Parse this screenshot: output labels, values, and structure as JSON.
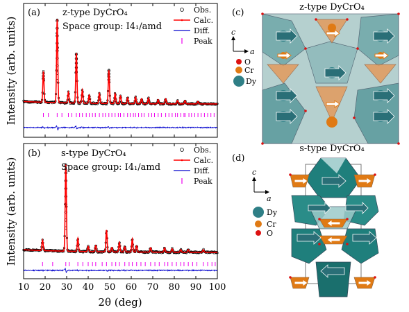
{
  "colors": {
    "obs": "#000000",
    "calc": "#ff0000",
    "diff": "#0000cc",
    "peak": "#ee00ee",
    "dy": "#3a8f95",
    "cr": "#e07a14",
    "o": "#dd1111",
    "arrow": "#2a6f77"
  },
  "chart_data": [
    {
      "type": "line",
      "panel_label": "(a)",
      "title": "z-type DyCrO₄",
      "subtitle": "Space group: I4₁/amd",
      "xlabel": "2θ (deg)",
      "ylabel": "Intensity (arb. units)",
      "xlim": [
        10,
        100
      ],
      "xticks": [],
      "legend": [
        "Obs.",
        "Calc.",
        "Diff.",
        "Peak"
      ],
      "legend_position": "top-right",
      "peaks": [
        {
          "x": 19.2,
          "y": 0.37
        },
        {
          "x": 25.6,
          "y": 1.0
        },
        {
          "x": 30.8,
          "y": 0.13
        },
        {
          "x": 34.5,
          "y": 0.6
        },
        {
          "x": 37.3,
          "y": 0.16
        },
        {
          "x": 40.5,
          "y": 0.1
        },
        {
          "x": 45.2,
          "y": 0.12
        },
        {
          "x": 49.6,
          "y": 0.4
        },
        {
          "x": 52.5,
          "y": 0.12
        },
        {
          "x": 55.0,
          "y": 0.09
        },
        {
          "x": 58.3,
          "y": 0.07
        },
        {
          "x": 62.0,
          "y": 0.08
        },
        {
          "x": 64.8,
          "y": 0.06
        },
        {
          "x": 68.0,
          "y": 0.07
        },
        {
          "x": 72.5,
          "y": 0.05
        },
        {
          "x": 76.0,
          "y": 0.06
        },
        {
          "x": 81.5,
          "y": 0.04
        },
        {
          "x": 85.0,
          "y": 0.04
        },
        {
          "x": 91.0,
          "y": 0.03
        }
      ],
      "bragg_positions": [
        19.2,
        21.5,
        25.6,
        27.8,
        30.8,
        32.4,
        34.5,
        36.0,
        37.3,
        39.1,
        40.5,
        42.0,
        43.3,
        45.2,
        46.8,
        48.0,
        49.6,
        51.0,
        52.5,
        54.0,
        55.0,
        56.6,
        58.3,
        59.5,
        61.0,
        62.0,
        63.4,
        64.8,
        66.0,
        68.0,
        69.5,
        70.8,
        72.5,
        74.0,
        76.0,
        77.5,
        79.0,
        80.5,
        81.5,
        83.0,
        84.5,
        85.0,
        86.8,
        88.0,
        89.5,
        91.0,
        92.5,
        94.0,
        95.5,
        97.0,
        98.5
      ]
    },
    {
      "type": "line",
      "panel_label": "(b)",
      "title": "s-type DyCrO₄",
      "subtitle": "Space group: I4₁/amd",
      "xlabel": "2θ (deg)",
      "ylabel": "Intensity (arb. units)",
      "xlim": [
        10,
        100
      ],
      "xticks": [
        10,
        20,
        30,
        40,
        50,
        60,
        70,
        80,
        90,
        100
      ],
      "legend": [
        "Obs.",
        "Calc.",
        "Diff.",
        "Peak"
      ],
      "legend_position": "top-right",
      "peaks": [
        {
          "x": 18.8,
          "y": 0.12
        },
        {
          "x": 29.6,
          "y": 1.0
        },
        {
          "x": 35.2,
          "y": 0.15
        },
        {
          "x": 40.0,
          "y": 0.06
        },
        {
          "x": 43.5,
          "y": 0.07
        },
        {
          "x": 48.5,
          "y": 0.25
        },
        {
          "x": 51.0,
          "y": 0.05
        },
        {
          "x": 54.5,
          "y": 0.11
        },
        {
          "x": 57.0,
          "y": 0.06
        },
        {
          "x": 60.5,
          "y": 0.15
        },
        {
          "x": 62.5,
          "y": 0.07
        },
        {
          "x": 69.0,
          "y": 0.05
        },
        {
          "x": 75.5,
          "y": 0.05
        },
        {
          "x": 79.0,
          "y": 0.04
        },
        {
          "x": 83.0,
          "y": 0.03
        },
        {
          "x": 86.5,
          "y": 0.03
        },
        {
          "x": 93.5,
          "y": 0.03
        }
      ],
      "bragg_positions": [
        18.8,
        23.5,
        29.6,
        31.2,
        35.2,
        37.5,
        40.0,
        42.0,
        43.5,
        46.5,
        48.5,
        51.0,
        52.8,
        54.5,
        57.0,
        59.0,
        60.5,
        62.5,
        64.5,
        66.5,
        69.0,
        71.0,
        73.0,
        75.5,
        77.0,
        79.0,
        81.0,
        83.0,
        84.5,
        86.5,
        88.5,
        90.5,
        93.5,
        95.5,
        97.5,
        99.0
      ]
    }
  ],
  "structure_c": {
    "panel_label": "(c)",
    "title": "z-type DyCrO₄",
    "axis_c": "c",
    "axis_a": "a",
    "legend": [
      "O",
      "Cr",
      "Dy"
    ]
  },
  "structure_d": {
    "panel_label": "(d)",
    "title": "s-type DyCrO₄",
    "axis_c": "c",
    "axis_a": "a",
    "legend": [
      "Dy",
      "Cr",
      "O"
    ]
  }
}
